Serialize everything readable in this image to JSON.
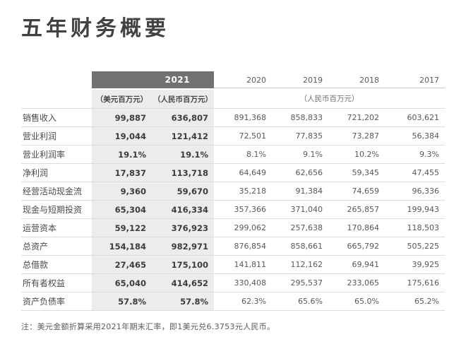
{
  "page": {
    "title": "五年财务概要",
    "footnote": "注：美元金额折算采用2021年期末汇率，即1美元兑6.3753元人民币。"
  },
  "colors": {
    "header_bar": "#717171",
    "highlight_block": "#ececec"
  },
  "table": {
    "header": {
      "year_2021": "2021",
      "unit_usd": "（美元百万元）",
      "unit_rmb": "（人民币百万元）",
      "years": [
        "2020",
        "2019",
        "2018",
        "2017"
      ],
      "unit_rmb_other": "（人民币百万元）"
    },
    "rows": [
      {
        "label": "销售收入",
        "usd": "99,887",
        "rmb": "636,807",
        "y2020": "891,368",
        "y2019": "858,833",
        "y2018": "721,202",
        "y2017": "603,621"
      },
      {
        "label": "营业利润",
        "usd": "19,044",
        "rmb": "121,412",
        "y2020": "72,501",
        "y2019": "77,835",
        "y2018": "73,287",
        "y2017": "56,384"
      },
      {
        "label": "营业利润率",
        "usd": "19.1%",
        "rmb": "19.1%",
        "y2020": "8.1%",
        "y2019": "9.1%",
        "y2018": "10.2%",
        "y2017": "9.3%"
      },
      {
        "label": "净利润",
        "usd": "17,837",
        "rmb": "113,718",
        "y2020": "64,649",
        "y2019": "62,656",
        "y2018": "59,345",
        "y2017": "47,455"
      },
      {
        "label": "经营活动现金流",
        "usd": "9,360",
        "rmb": "59,670",
        "y2020": "35,218",
        "y2019": "91,384",
        "y2018": "74,659",
        "y2017": "96,336"
      },
      {
        "label": "现金与短期投资",
        "usd": "65,304",
        "rmb": "416,334",
        "y2020": "357,366",
        "y2019": "371,040",
        "y2018": "265,857",
        "y2017": "199,943"
      },
      {
        "label": "运营资本",
        "usd": "59,122",
        "rmb": "376,923",
        "y2020": "299,062",
        "y2019": "257,638",
        "y2018": "170,864",
        "y2017": "118,503"
      },
      {
        "label": "总资产",
        "usd": "154,184",
        "rmb": "982,971",
        "y2020": "876,854",
        "y2019": "858,661",
        "y2018": "665,792",
        "y2017": "505,225"
      },
      {
        "label": "总借款",
        "usd": "27,465",
        "rmb": "175,100",
        "y2020": "141,811",
        "y2019": "112,162",
        "y2018": "69,941",
        "y2017": "39,925"
      },
      {
        "label": "所有者权益",
        "usd": "65,040",
        "rmb": "414,652",
        "y2020": "330,408",
        "y2019": "295,537",
        "y2018": "233,065",
        "y2017": "175,616"
      },
      {
        "label": "资产负债率",
        "usd": "57.8%",
        "rmb": "57.8%",
        "y2020": "62.3%",
        "y2019": "65.6%",
        "y2018": "65.0%",
        "y2017": "65.2%"
      }
    ]
  }
}
